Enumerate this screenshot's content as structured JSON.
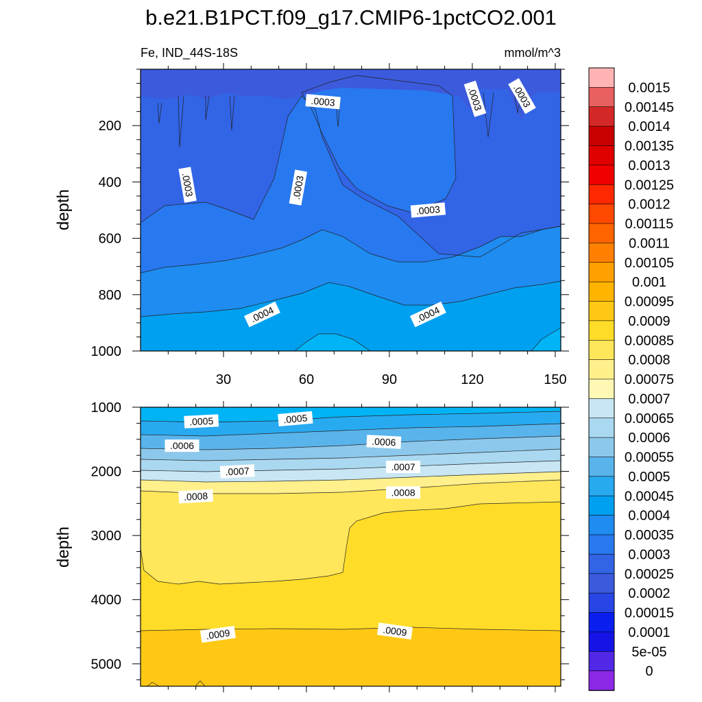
{
  "chart_data": [
    {
      "type": "contour",
      "title": "b.e21.B1PCT.f09_g17.CMIP6-1pctCO2.001",
      "subtitle_left": "Fe, IND_44S-18S",
      "subtitle_right": "mmol/m^3",
      "xlabel": "",
      "ylabel": "depth",
      "xlim": [
        0,
        152
      ],
      "ylim": [
        1000,
        0
      ],
      "xticks": [
        30,
        60,
        90,
        120,
        150
      ],
      "yticks": [
        200,
        400,
        600,
        800,
        1000
      ],
      "contour_labels": [
        {
          "text": ".0003",
          "x": 66,
          "y": 115,
          "rot": 5
        },
        {
          "text": ".0003",
          "x": 121,
          "y": 105,
          "rot": 72
        },
        {
          "text": ".0003",
          "x": 138,
          "y": 95,
          "rot": 60
        },
        {
          "text": ".0003",
          "x": 17,
          "y": 410,
          "rot": 80
        },
        {
          "text": ".0003",
          "x": 57,
          "y": 420,
          "rot": -80
        },
        {
          "text": ".0003",
          "x": 104,
          "y": 500,
          "rot": -5
        },
        {
          "text": ".0004",
          "x": 44,
          "y": 870,
          "rot": -25
        },
        {
          "text": ".0004",
          "x": 104,
          "y": 870,
          "rot": -25
        }
      ]
    },
    {
      "type": "contour",
      "title": "",
      "xlabel": "",
      "ylabel": "depth",
      "xlim": [
        0,
        152
      ],
      "ylim": [
        5350,
        1000
      ],
      "xticks": [
        30,
        60,
        90,
        120,
        150
      ],
      "yticks": [
        1000,
        2000,
        3000,
        4000,
        5000
      ],
      "contour_labels": [
        {
          "text": ".0005",
          "x": 22,
          "y": 1220,
          "rot": -3
        },
        {
          "text": ".0005",
          "x": 56,
          "y": 1180,
          "rot": -5
        },
        {
          "text": ".0006",
          "x": 15,
          "y": 1600,
          "rot": 0
        },
        {
          "text": ".0006",
          "x": 88,
          "y": 1540,
          "rot": 3
        },
        {
          "text": ".0007",
          "x": 35,
          "y": 2000,
          "rot": -3
        },
        {
          "text": ".0007",
          "x": 95,
          "y": 1930,
          "rot": 0
        },
        {
          "text": ".0008",
          "x": 20,
          "y": 2390,
          "rot": -3
        },
        {
          "text": ".0008",
          "x": 95,
          "y": 2330,
          "rot": 0
        },
        {
          "text": ".0009",
          "x": 28,
          "y": 4540,
          "rot": -8
        },
        {
          "text": ".0009",
          "x": 92,
          "y": 4490,
          "rot": 8
        }
      ]
    }
  ],
  "colorbar": {
    "labels": [
      "0.0015",
      "0.00145",
      "0.0014",
      "0.00135",
      "0.0013",
      "0.00125",
      "0.0012",
      "0.00115",
      "0.0011",
      "0.00105",
      "0.001",
      "0.00095",
      "0.0009",
      "0.00085",
      "0.0008",
      "0.00075",
      "0.0007",
      "0.00065",
      "0.0006",
      "0.00055",
      "0.0005",
      "0.00045",
      "0.0004",
      "0.00035",
      "0.0003",
      "0.00025",
      "0.0002",
      "0.00015",
      "0.0001",
      "5e-05",
      "0"
    ],
    "colors": [
      "#ffb3b3",
      "#e86060",
      "#d42828",
      "#c80000",
      "#e00000",
      "#f00000",
      "#ff2800",
      "#ff4800",
      "#ff6400",
      "#ff8000",
      "#ffa000",
      "#ffb400",
      "#ffc814",
      "#ffdc28",
      "#ffe65a",
      "#fff08c",
      "#fff8b4",
      "#c8e6f4",
      "#aad8f0",
      "#8cc8ec",
      "#5ab4ec",
      "#28aaf0",
      "#00a0f0",
      "#1e8cf0",
      "#2878f0",
      "#3264e6",
      "#3c5adc",
      "#2846e6",
      "#0a1ef0",
      "#1414e6",
      "#5028e6",
      "#8c28e6"
    ]
  }
}
